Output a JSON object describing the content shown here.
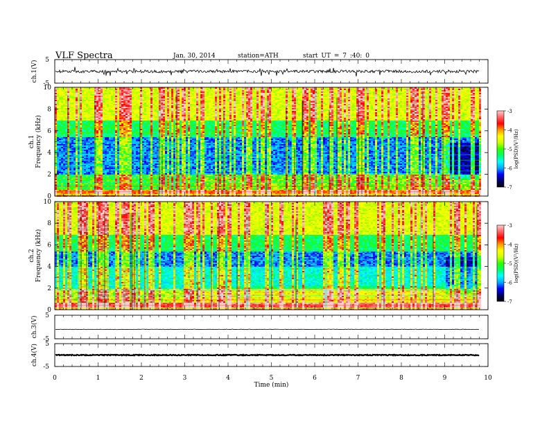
{
  "header": {
    "title": "VLF  Spectra",
    "date": "Jan. 30, 2014",
    "station": "station=ATH",
    "start": "start  UT  =   7 :40: 0"
  },
  "colors": {
    "spectrogram_scale": [
      "#000000",
      "#000066",
      "#0000ff",
      "#00aaff",
      "#00ffff",
      "#00ff66",
      "#33ff00",
      "#ccff00",
      "#ffff00",
      "#ff9900",
      "#ff0000",
      "#ff6666",
      "#ffcccc"
    ]
  },
  "chart_data": [
    {
      "type": "line",
      "panel": "ch1-waveform",
      "ylabel": "ch.1(V)",
      "yticks": [
        "5",
        "-5"
      ],
      "ylim": [
        -5,
        5
      ],
      "xlim": [
        0,
        9.8
      ],
      "baseline": 0,
      "amplitude_note": "noise trace near 0 V with spikes to about ±2 V"
    },
    {
      "type": "heatmap",
      "panel": "ch1-spectrogram",
      "ylabel": "ch.1\nFrequency  (kHz)",
      "yticks": [
        "0",
        "2",
        "4",
        "6",
        "8",
        "10"
      ],
      "ylim": [
        0,
        10
      ],
      "xlim": [
        0,
        9.8
      ],
      "colorbar": {
        "label": "log(PSD)(V²/Hz)",
        "ticks": [
          "-3",
          "-4",
          "-5",
          "-6",
          "-7"
        ],
        "range": [
          -7,
          -3
        ]
      },
      "band_change_times_min": [
        3.3,
        9.0
      ]
    },
    {
      "type": "heatmap",
      "panel": "ch2-spectrogram",
      "ylabel": "ch.2\nFrequency  (kHz)",
      "yticks": [
        "0",
        "2",
        "4",
        "6",
        "8",
        "10"
      ],
      "ylim": [
        0,
        10
      ],
      "xlim": [
        0,
        9.8
      ],
      "colorbar": {
        "label": "log(PSD)(V²/Hz)",
        "ticks": [
          "-3",
          "-4",
          "-5",
          "-6",
          "-7"
        ],
        "range": [
          -7,
          -3
        ]
      },
      "band_change_times_min": [
        3.3,
        9.0
      ]
    },
    {
      "type": "line",
      "panel": "ch3-waveform",
      "ylabel": "ch.3(V)",
      "yticks": [
        "5",
        "-5"
      ],
      "ylim": [
        -5,
        5
      ],
      "xlim": [
        0,
        9.8
      ],
      "baseline": -1
    },
    {
      "type": "line",
      "panel": "ch4-waveform",
      "ylabel": "ch.4(V)",
      "yticks": [
        "5",
        "-5"
      ],
      "ylim": [
        -5,
        5
      ],
      "xlim": [
        0,
        9.8
      ],
      "baseline": 0
    }
  ],
  "xaxis": {
    "label": "Time  (min)",
    "ticks": [
      "0",
      "1",
      "2",
      "3",
      "4",
      "5",
      "6",
      "7",
      "8",
      "9",
      "10"
    ],
    "range": [
      0,
      10
    ]
  }
}
